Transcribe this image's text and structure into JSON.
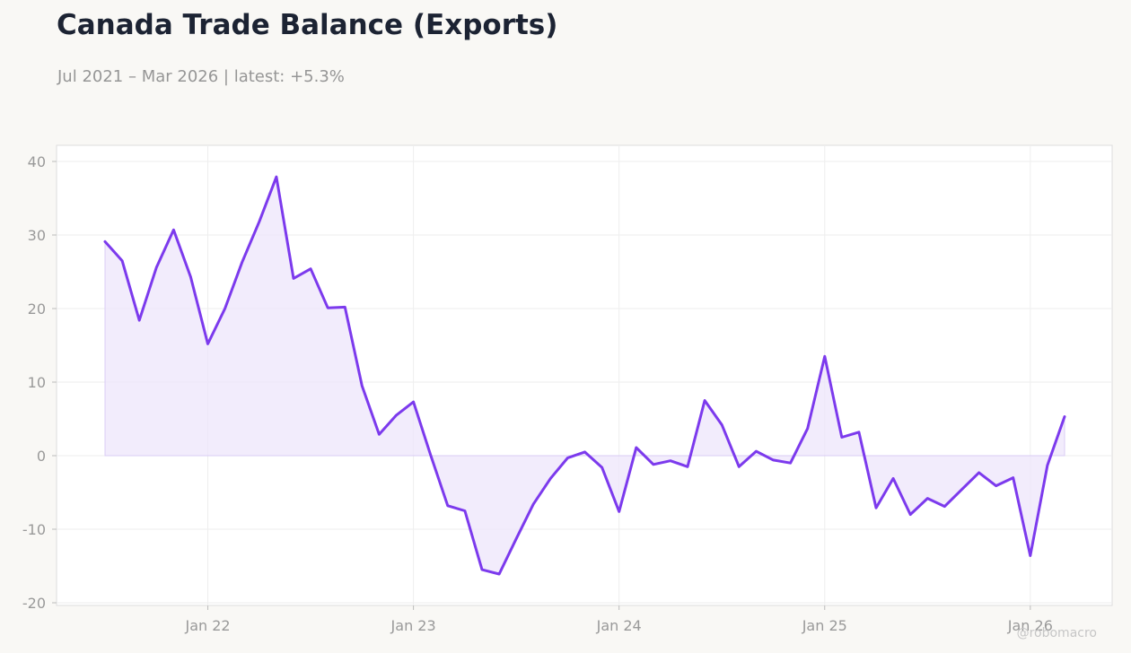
{
  "header": {
    "title": "Canada Trade Balance (Exports)",
    "subtitle": "Jul 2021 – Mar 2026 | latest: +5.3%"
  },
  "watermark": "@robomacro",
  "colors": {
    "line": "#7c3aed",
    "fill": "#ede5fb",
    "background": "#f9f8f5",
    "plot_background": "#ffffff",
    "grid": "#eeeeee",
    "title": "#1c2333",
    "muted_text": "#969696"
  },
  "chart_data": {
    "type": "area",
    "title": "Canada Trade Balance (Exports)",
    "subtitle": "Jul 2021 – Mar 2026 | latest: +5.3%",
    "xlabel": "",
    "ylabel": "",
    "ylim": [
      -20,
      40
    ],
    "yticks": [
      -20,
      -10,
      0,
      10,
      20,
      30,
      40
    ],
    "ytick_labels": [
      "-20",
      "-10",
      "0",
      "10",
      "20",
      "30",
      "40"
    ],
    "xticks": [
      "2022-01",
      "2023-01",
      "2024-01",
      "2025-01",
      "2026-01"
    ],
    "xtick_labels": [
      "Jan 22",
      "Jan 23",
      "Jan 24",
      "Jan 25",
      "Jan 26"
    ],
    "grid": true,
    "legend": "none",
    "x_start": "2021-07",
    "x_end": "2026-03",
    "series": [
      {
        "x": [
          "2021-07",
          "2021-08",
          "2021-09",
          "2021-10",
          "2021-11",
          "2021-12",
          "2022-01",
          "2022-02",
          "2022-03",
          "2022-04",
          "2022-05",
          "2022-06",
          "2022-07",
          "2022-08",
          "2022-09",
          "2022-10",
          "2022-11",
          "2022-12",
          "2023-01",
          "2023-02",
          "2023-03",
          "2023-04",
          "2023-05",
          "2023-06",
          "2023-07",
          "2023-08",
          "2023-09",
          "2023-10",
          "2023-11",
          "2023-12",
          "2024-01",
          "2024-02",
          "2024-03",
          "2024-04",
          "2024-05",
          "2024-06",
          "2024-07",
          "2024-08",
          "2024-09",
          "2024-10",
          "2024-11",
          "2024-12",
          "2025-01",
          "2025-02",
          "2025-03",
          "2025-04",
          "2025-05",
          "2025-06",
          "2025-07",
          "2025-08",
          "2025-09",
          "2025-10",
          "2025-11",
          "2025-12",
          "2026-01",
          "2026-02",
          "2026-03"
        ],
        "values": [
          29.1,
          26.5,
          18.4,
          25.6,
          30.7,
          24.3,
          15.2,
          20.0,
          26.3,
          31.8,
          37.9,
          24.1,
          25.4,
          20.1,
          20.2,
          9.5,
          2.9,
          5.5,
          7.3,
          0.1,
          -6.8,
          -7.5,
          -15.5,
          -16.1,
          -11.3,
          -6.6,
          -3.1,
          -0.3,
          0.5,
          -1.6,
          -7.6,
          1.1,
          -1.2,
          -0.7,
          -1.5,
          7.5,
          4.2,
          -1.5,
          0.6,
          -0.6,
          -1.0,
          3.7,
          13.5,
          2.5,
          3.2,
          -7.1,
          -3.1,
          -8.0,
          -5.8,
          -6.9,
          -4.6,
          -2.3,
          -4.1,
          -3.0,
          -13.6,
          -1.3,
          5.3
        ]
      }
    ]
  }
}
